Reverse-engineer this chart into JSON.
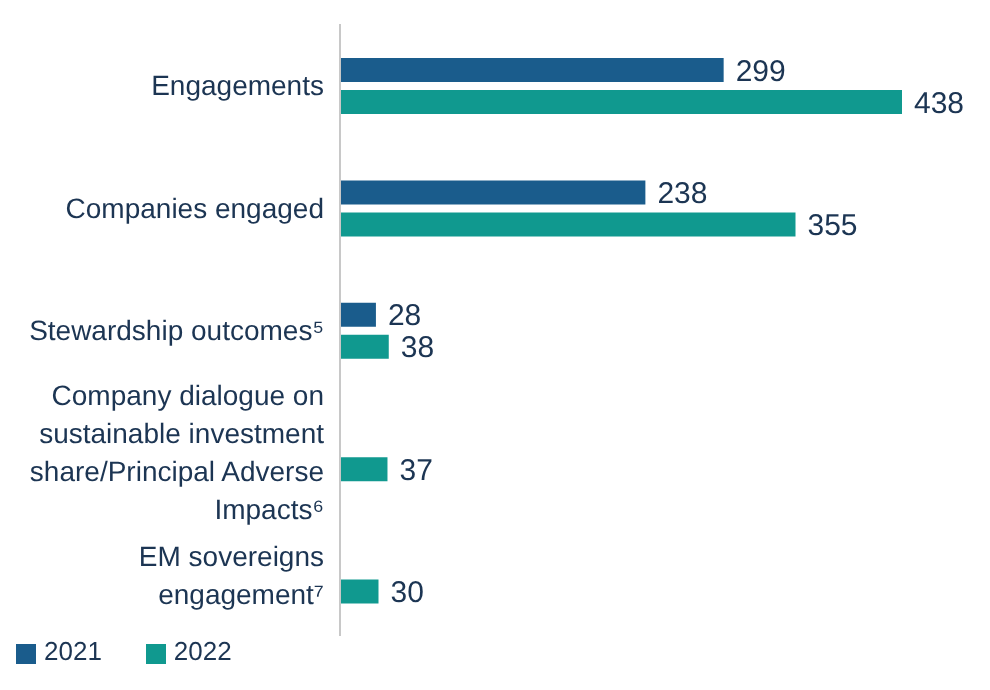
{
  "chart_data": {
    "type": "bar",
    "orientation": "horizontal",
    "categories": [
      "Engagements",
      "Companies engaged",
      "Stewardship outcomes⁵",
      "Company dialogue on sustainable investment share/Principal Adverse Impacts⁶",
      "EM sovereigns engagement⁷"
    ],
    "series": [
      {
        "name": "2021",
        "color": "#1a5c8c",
        "values": [
          299,
          238,
          28,
          null,
          null
        ]
      },
      {
        "name": "2022",
        "color": "#10998f",
        "values": [
          438,
          355,
          38,
          37,
          30
        ]
      }
    ],
    "data_labels": true,
    "tick_labels": "y",
    "grid": false,
    "legend": "bottom left"
  }
}
